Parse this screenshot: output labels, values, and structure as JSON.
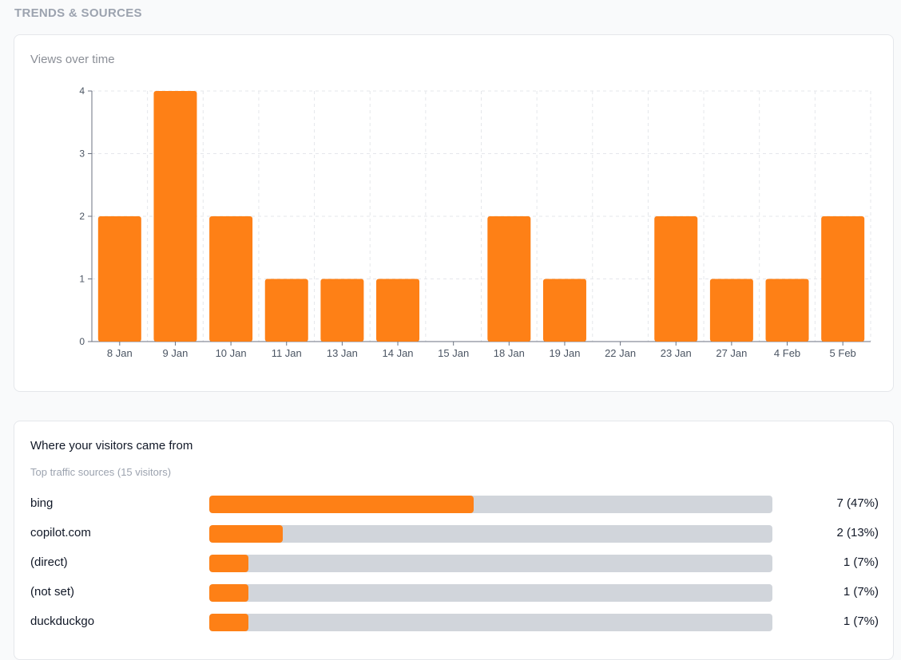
{
  "section_title": "TRENDS & SOURCES",
  "colors": {
    "accent": "#fe8016",
    "track": "#d1d5db",
    "grid": "#e5e7eb",
    "axis": "#6b7280"
  },
  "chart_data": {
    "type": "bar",
    "title": "Views over time",
    "categories": [
      "8 Jan",
      "9 Jan",
      "10 Jan",
      "11 Jan",
      "13 Jan",
      "14 Jan",
      "15 Jan",
      "18 Jan",
      "19 Jan",
      "22 Jan",
      "23 Jan",
      "27 Jan",
      "4 Feb",
      "5 Feb"
    ],
    "values": [
      2,
      4,
      2,
      1,
      1,
      1,
      0,
      2,
      1,
      0,
      2,
      1,
      1,
      2
    ],
    "yticks": [
      0,
      1,
      2,
      3,
      4
    ],
    "ylim": [
      0,
      4
    ],
    "xlabel": "",
    "ylabel": "",
    "grid": true
  },
  "sources": {
    "title": "Where your visitors came from",
    "subtitle": "Top traffic sources (15 visitors)",
    "items": [
      {
        "name": "bing",
        "count": 7,
        "percent": 47,
        "value_text": "7 (47%)"
      },
      {
        "name": "copilot.com",
        "count": 2,
        "percent": 13,
        "value_text": "2 (13%)"
      },
      {
        "name": "(direct)",
        "count": 1,
        "percent": 7,
        "value_text": "1 (7%)"
      },
      {
        "name": "(not set)",
        "count": 1,
        "percent": 7,
        "value_text": "1 (7%)"
      },
      {
        "name": "duckduckgo",
        "count": 1,
        "percent": 7,
        "value_text": "1 (7%)"
      }
    ]
  }
}
